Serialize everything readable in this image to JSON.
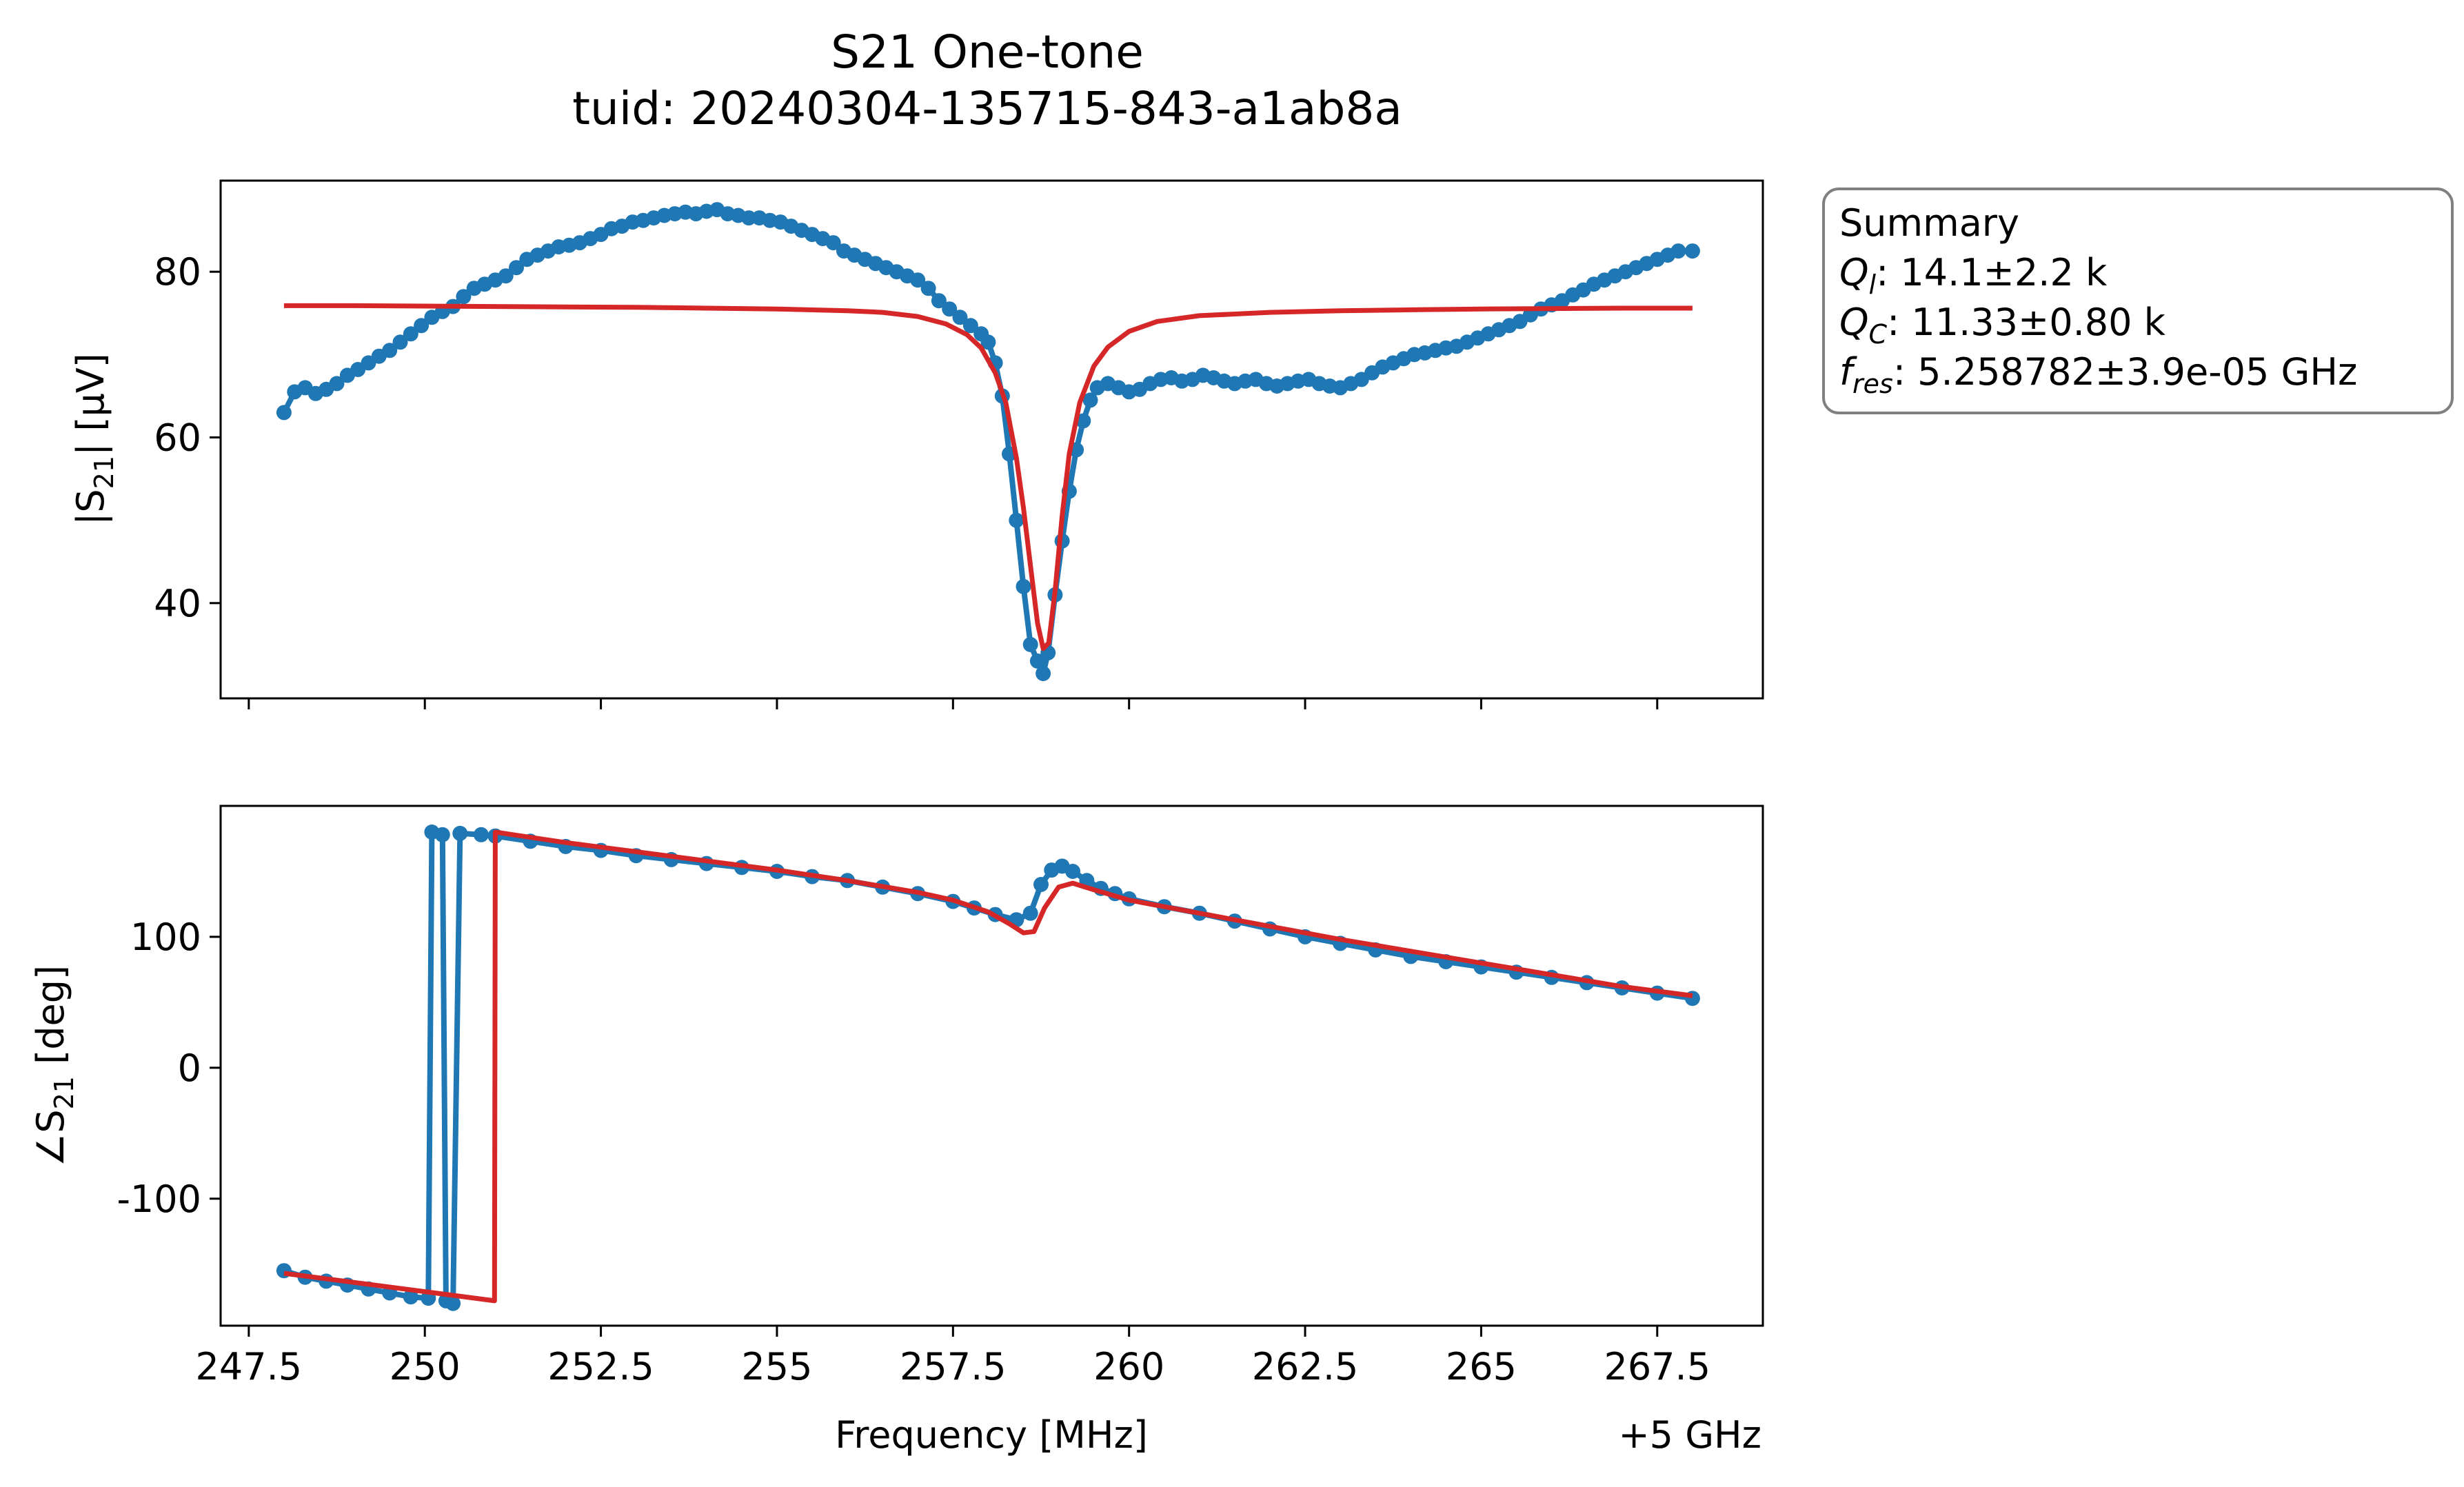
{
  "figure": {
    "title_line1": "S21 One-tone",
    "title_line2": "tuid: 20240304-135715-843-a1ab8a"
  },
  "summary": {
    "heading": "Summary",
    "ql_label": "Q",
    "ql_sub": "l",
    "ql_value": ": 14.1±2.2 k",
    "qc_label": "Q",
    "qc_sub": "C",
    "qc_value": ": 11.33±0.80 k",
    "fres_label": "f",
    "fres_sub": "res",
    "fres_value": ": 5.258782±3.9e-05 GHz"
  },
  "colors": {
    "data": "#1f77b4",
    "fit": "#d62728"
  },
  "chart_data": [
    {
      "type": "line",
      "panel": "magnitude",
      "ylabel_main": "|S",
      "ylabel_sub": "21",
      "ylabel_tail": "| [µV]",
      "xlim": [
        247.1,
        269.0
      ],
      "ylim": [
        28.5,
        91
      ],
      "yticks": [
        40,
        60,
        80
      ],
      "ytick_labels": [
        "40",
        "60",
        "80"
      ],
      "xticks": [
        247.5,
        250,
        252.5,
        255,
        257.5,
        260,
        262.5,
        265,
        267.5
      ],
      "grid": false,
      "series": [
        {
          "role": "data",
          "markers": true,
          "x": [
            248.0,
            248.15,
            248.3,
            248.45,
            248.6,
            248.75,
            248.9,
            249.05,
            249.2,
            249.35,
            249.5,
            249.65,
            249.8,
            249.95,
            250.1,
            250.25,
            250.4,
            250.55,
            250.7,
            250.85,
            251.0,
            251.15,
            251.3,
            251.45,
            251.6,
            251.75,
            251.9,
            252.05,
            252.2,
            252.35,
            252.5,
            252.65,
            252.8,
            252.95,
            253.1,
            253.25,
            253.4,
            253.55,
            253.7,
            253.85,
            254.0,
            254.15,
            254.3,
            254.45,
            254.6,
            254.75,
            254.9,
            255.05,
            255.2,
            255.35,
            255.5,
            255.65,
            255.8,
            255.95,
            256.1,
            256.25,
            256.4,
            256.55,
            256.7,
            256.85,
            257.0,
            257.15,
            257.3,
            257.45,
            257.6,
            257.75,
            257.9,
            258.0,
            258.1,
            258.2,
            258.3,
            258.4,
            258.5,
            258.6,
            258.7,
            258.78,
            258.85,
            258.95,
            259.05,
            259.15,
            259.25,
            259.35,
            259.45,
            259.55,
            259.7,
            259.85,
            260.0,
            260.15,
            260.3,
            260.45,
            260.6,
            260.75,
            260.9,
            261.05,
            261.2,
            261.35,
            261.5,
            261.65,
            261.8,
            261.95,
            262.1,
            262.25,
            262.4,
            262.55,
            262.7,
            262.85,
            263.0,
            263.15,
            263.3,
            263.45,
            263.6,
            263.75,
            263.9,
            264.05,
            264.2,
            264.35,
            264.5,
            264.65,
            264.8,
            264.95,
            265.1,
            265.25,
            265.4,
            265.55,
            265.7,
            265.85,
            266.0,
            266.15,
            266.3,
            266.45,
            266.6,
            266.75,
            266.9,
            267.05,
            267.2,
            267.35,
            267.5,
            267.65,
            267.8,
            268.0
          ],
          "y": [
            63.0,
            65.5,
            66.0,
            65.3,
            65.8,
            66.5,
            67.5,
            68.2,
            69.0,
            69.8,
            70.5,
            71.5,
            72.5,
            73.5,
            74.5,
            75.2,
            75.8,
            77.0,
            78.0,
            78.5,
            79.0,
            79.5,
            80.5,
            81.5,
            82.0,
            82.5,
            83.0,
            83.2,
            83.5,
            84.0,
            84.5,
            85.2,
            85.5,
            86.0,
            86.2,
            86.5,
            86.8,
            87.0,
            87.2,
            87.0,
            87.3,
            87.5,
            87.0,
            86.8,
            86.5,
            86.5,
            86.2,
            86.0,
            85.5,
            85.0,
            84.5,
            84.0,
            83.5,
            82.5,
            82.0,
            81.5,
            81.0,
            80.5,
            80.0,
            79.5,
            79.0,
            78.0,
            76.5,
            75.5,
            74.5,
            73.5,
            72.5,
            71.5,
            69.0,
            65.0,
            58.0,
            50.0,
            42.0,
            35.0,
            33.0,
            31.5,
            34.0,
            41.0,
            47.5,
            53.5,
            58.5,
            62.0,
            64.5,
            66.0,
            66.5,
            66.0,
            65.5,
            65.8,
            66.5,
            67.0,
            67.2,
            66.8,
            67.0,
            67.5,
            67.2,
            66.8,
            66.5,
            66.8,
            67.0,
            66.5,
            66.2,
            66.5,
            66.8,
            67.0,
            66.5,
            66.2,
            66.0,
            66.5,
            67.0,
            67.8,
            68.5,
            69.0,
            69.5,
            70.0,
            70.2,
            70.5,
            70.8,
            71.0,
            71.5,
            72.0,
            72.5,
            73.0,
            73.5,
            74.0,
            74.8,
            75.5,
            76.0,
            76.5,
            77.2,
            77.8,
            78.5,
            79.0,
            79.5,
            80.0,
            80.5,
            81.0,
            81.5,
            82.0,
            82.5,
            82.5
          ]
        },
        {
          "role": "fit",
          "markers": false,
          "x": [
            248.0,
            249.0,
            250.0,
            251.0,
            252.0,
            253.0,
            254.0,
            255.0,
            256.0,
            256.5,
            257.0,
            257.4,
            257.7,
            257.9,
            258.1,
            258.25,
            258.4,
            258.5,
            258.6,
            258.7,
            258.78,
            258.86,
            258.95,
            259.05,
            259.15,
            259.3,
            259.5,
            259.7,
            260.0,
            260.4,
            261.0,
            262.0,
            263.0,
            264.0,
            265.0,
            266.0,
            267.0,
            268.0
          ],
          "y": [
            75.9,
            75.9,
            75.85,
            75.8,
            75.75,
            75.7,
            75.6,
            75.5,
            75.3,
            75.1,
            74.6,
            73.7,
            72.4,
            70.8,
            67.8,
            64.2,
            57.5,
            51.5,
            44.5,
            37.6,
            34.5,
            35.2,
            41.5,
            50.5,
            58.0,
            64.2,
            68.6,
            70.9,
            72.8,
            74.0,
            74.7,
            75.1,
            75.3,
            75.4,
            75.5,
            75.55,
            75.6,
            75.6
          ]
        }
      ]
    },
    {
      "type": "line",
      "panel": "phase",
      "ylabel_main": "∠S",
      "ylabel_sub": "21",
      "ylabel_tail": " [deg]",
      "xlabel": "Frequency [MHz]",
      "offset_label": "+5 GHz",
      "xlim": [
        247.1,
        269.0
      ],
      "ylim": [
        -197,
        200
      ],
      "yticks": [
        -100,
        0,
        100
      ],
      "ytick_labels": [
        "-100",
        "0",
        "100"
      ],
      "xticks": [
        247.5,
        250,
        252.5,
        255,
        257.5,
        260,
        262.5,
        265,
        267.5
      ],
      "xtick_labels": [
        "247.5",
        "250",
        "252.5",
        "255",
        "257.5",
        "260",
        "262.5",
        "265",
        "267.5"
      ],
      "grid": false,
      "series": [
        {
          "role": "data",
          "markers": true,
          "x": [
            248.0,
            248.3,
            248.6,
            248.9,
            249.2,
            249.5,
            249.8,
            250.05,
            250.1,
            250.25,
            250.3,
            250.4,
            250.5,
            250.8,
            251.0,
            251.5,
            252.0,
            252.5,
            253.0,
            253.5,
            254.0,
            254.5,
            255.0,
            255.5,
            256.0,
            256.5,
            257.0,
            257.5,
            257.8,
            258.1,
            258.4,
            258.6,
            258.75,
            258.9,
            259.05,
            259.2,
            259.4,
            259.6,
            259.8,
            260.0,
            260.5,
            261.0,
            261.5,
            262.0,
            262.5,
            263.0,
            263.5,
            264.0,
            264.5,
            265.0,
            265.5,
            266.0,
            266.5,
            267.0,
            267.5,
            268.0
          ],
          "y": [
            -155,
            -160,
            -163,
            -166,
            -169,
            -172,
            -175,
            -176,
            180,
            178,
            -178,
            -180,
            179,
            178,
            177,
            173,
            169,
            166,
            162,
            159,
            156,
            153,
            150,
            146,
            143,
            138,
            133,
            127,
            122,
            117,
            113,
            118,
            140,
            151,
            154,
            150,
            143,
            137,
            133,
            129,
            123,
            118,
            112,
            106,
            100,
            95,
            90,
            85,
            81,
            77,
            73,
            69,
            65,
            61,
            57,
            53
          ]
        },
        {
          "role": "fit",
          "markers": false,
          "x": [
            248.0,
            249.0,
            250.0,
            250.99,
            251.0,
            252.0,
            253.0,
            254.0,
            255.0,
            256.0,
            257.0,
            257.5,
            258.0,
            258.3,
            258.5,
            258.65,
            258.8,
            259.0,
            259.2,
            259.5,
            260.0,
            261.0,
            262.0,
            263.0,
            264.0,
            265.0,
            266.0,
            267.0,
            268.0
          ],
          "y": [
            -157,
            -164,
            -171,
            -178,
            180,
            172,
            165,
            158,
            151,
            143,
            134,
            128,
            119,
            110,
            103,
            104,
            122,
            138,
            141,
            136,
            128,
            118,
            108,
            98,
            89,
            80,
            71,
            62,
            55
          ]
        }
      ]
    }
  ]
}
